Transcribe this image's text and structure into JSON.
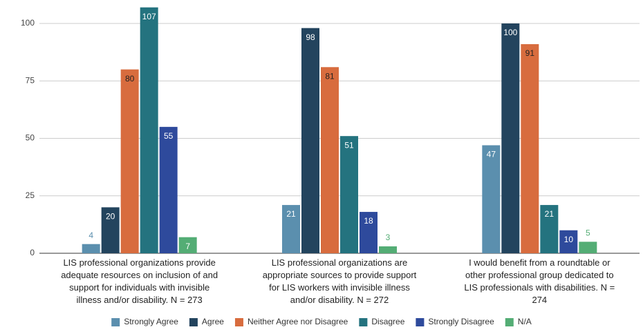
{
  "chart_data": {
    "type": "bar",
    "categories": [
      "LIS professional organizations provide adequate resources on inclusion of and support for individuals with invisible illness and/or disability. N = 273",
      "LIS professional organizations are appropriate sources to provide support for LIS workers with invisible illness and/or disability. N = 272",
      "I would benefit from a roundtable or other professional group dedicated to LIS professionals with disabilities. N = 274"
    ],
    "series": [
      {
        "name": "Strongly Agree",
        "color": "#5b8fae",
        "values": [
          4,
          21,
          47
        ]
      },
      {
        "name": "Agree",
        "color": "#23445e",
        "values": [
          20,
          98,
          100
        ]
      },
      {
        "name": "Neither Agree nor Disagree",
        "color": "#d86c3e",
        "label_color": "#222222",
        "values": [
          80,
          81,
          91
        ]
      },
      {
        "name": "Disagree",
        "color": "#24737f",
        "values": [
          107,
          51,
          21
        ]
      },
      {
        "name": "Strongly Disagree",
        "color": "#2e4a9c",
        "values": [
          55,
          18,
          10
        ]
      },
      {
        "name": "N/A",
        "color": "#54ad75",
        "values": [
          7,
          3,
          5
        ]
      }
    ],
    "ylim": [
      0,
      110
    ],
    "yticks": [
      0,
      25,
      50,
      75,
      100
    ],
    "grid": true,
    "legend": "bottom"
  }
}
